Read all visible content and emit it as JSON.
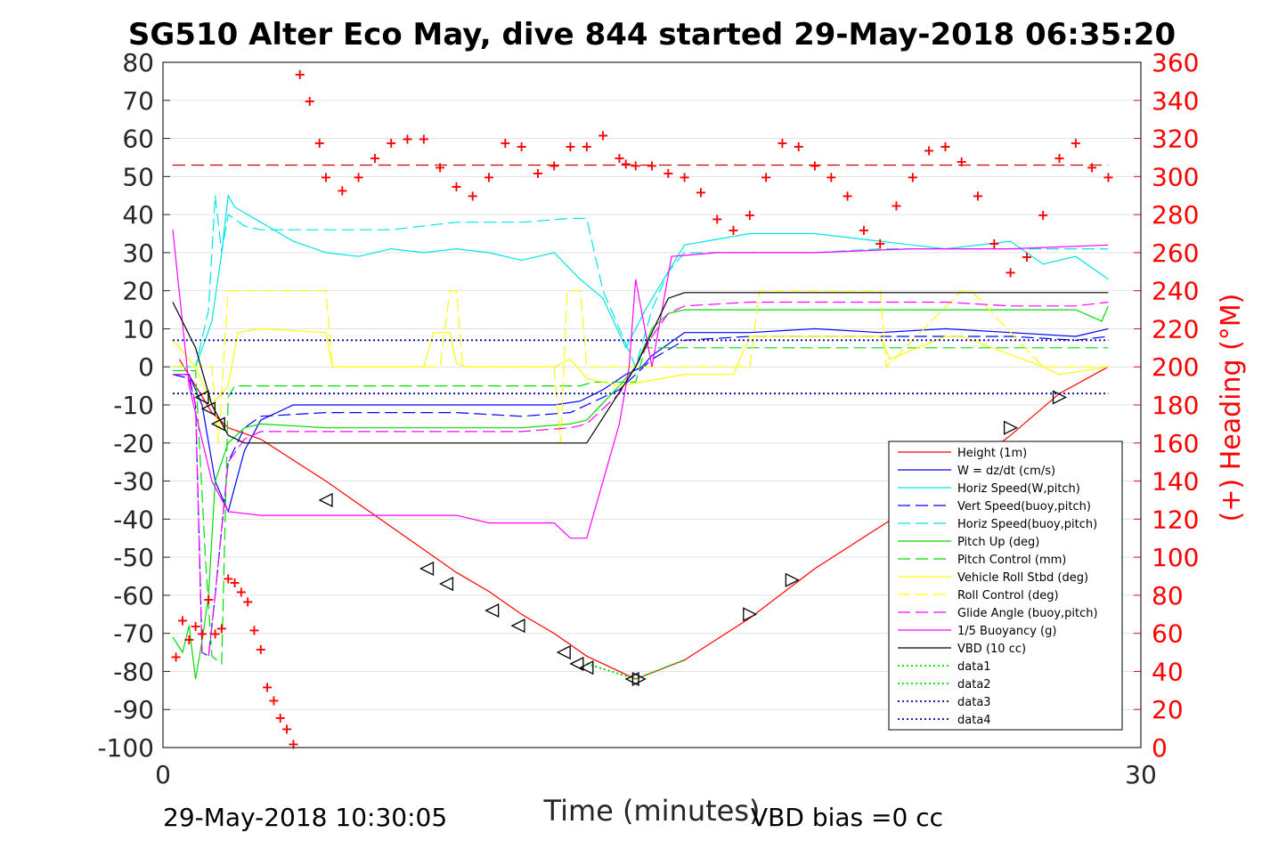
{
  "chart_data": {
    "type": "line",
    "title": "SG510 Alter Eco May, dive 844 started 29-May-2018 06:35:20",
    "xlabel": "Time (minutes)",
    "ylabel": "",
    "y2label": "(+) Heading (°M)",
    "xlim": [
      0,
      30
    ],
    "ylim": [
      -100,
      80
    ],
    "y2lim": [
      0,
      360
    ],
    "x_ticks": [
      "0",
      "30"
    ],
    "y_ticks": [
      "80",
      "70",
      "60",
      "50",
      "40",
      "30",
      "20",
      "10",
      "0",
      "-10",
      "-20",
      "-30",
      "-40",
      "-50",
      "-60",
      "-70",
      "-80",
      "-90",
      "-100"
    ],
    "y2_ticks": [
      "360",
      "340",
      "320",
      "300",
      "280",
      "260",
      "240",
      "220",
      "200",
      "180",
      "160",
      "140",
      "120",
      "100",
      "80",
      "60",
      "40",
      "20",
      "0"
    ],
    "grid": true,
    "legend_position": "bottom-right",
    "footer_left": "29-May-2018 10:30:05",
    "footer_right": "VBD bias =0 cc",
    "series": [
      {
        "name": "Height (1m)",
        "color": "#ff0000",
        "style": "solid",
        "x": [
          0.5,
          1.0,
          1.5,
          2.0,
          3.0,
          5.0,
          7.0,
          9.0,
          10.0,
          11.0,
          12.0,
          13.0,
          14.0,
          14.5,
          16.0,
          18.0,
          20.0,
          22.0,
          24.0,
          26.0,
          27.5,
          29.0
        ],
        "y": [
          2,
          -5,
          -12,
          -16,
          -19,
          -30,
          -42,
          -54,
          -59,
          -65,
          -70,
          -76,
          -80,
          -82,
          -77,
          -66,
          -53,
          -42,
          -31,
          -18,
          -7,
          0
        ]
      },
      {
        "name": "W = dz/dt (cm/s)",
        "color": "#0000ff",
        "style": "solid",
        "x": [
          0.3,
          0.8,
          1.2,
          1.6,
          2.0,
          2.5,
          3.0,
          4.0,
          6.0,
          8.0,
          10.0,
          12.0,
          12.8,
          13.5,
          14.2,
          14.7,
          15.0,
          15.5,
          16.0,
          18.0,
          20.0,
          22.0,
          24.0,
          26.0,
          28.0,
          29.0
        ],
        "y": [
          -2,
          -2,
          -10,
          -30,
          -38,
          -22,
          -14,
          -10,
          -10,
          -10,
          -10,
          -10,
          -9,
          -6,
          -2,
          0,
          3,
          6,
          9,
          9,
          10,
          9,
          10,
          9,
          8,
          10
        ]
      },
      {
        "name": "Horiz Speed(W,pitch)",
        "color": "#00e5e5",
        "style": "solid",
        "x": [
          0.3,
          1.0,
          1.5,
          1.8,
          2.0,
          2.2,
          3.0,
          4.0,
          5.0,
          6.0,
          7.0,
          8.0,
          9.0,
          10.0,
          11.0,
          12.0,
          12.8,
          13.5,
          14.2,
          14.8,
          15.5,
          16.0,
          18.0,
          20.0,
          22.0,
          24.0,
          26.0,
          27.0,
          28.0,
          29.0
        ],
        "y": [
          0,
          0,
          12,
          30,
          45,
          42,
          38,
          33,
          30,
          29,
          31,
          30,
          31,
          30,
          28,
          30,
          23,
          18,
          5,
          15,
          25,
          32,
          35,
          35,
          33,
          31,
          33,
          27,
          29,
          23
        ]
      },
      {
        "name": "Vert Speed(buoy,pitch)",
        "color": "#0000ff",
        "style": "dashed",
        "x": [
          0.3,
          0.8,
          1.0,
          1.2,
          1.4,
          1.6,
          2.0,
          2.5,
          3.0,
          5.0,
          7.0,
          9.0,
          11.0,
          12.5,
          13.0,
          14.0,
          14.5,
          15.0,
          16.0,
          18.0,
          20.0,
          22.0,
          24.0,
          26.0,
          28.0,
          29.0
        ],
        "y": [
          -2,
          -3,
          -10,
          -75,
          -76,
          -60,
          -25,
          -16,
          -13,
          -12,
          -12,
          -12,
          -13,
          -12,
          -10,
          -6,
          -2,
          2,
          7,
          8,
          8,
          8,
          8,
          8,
          7,
          8
        ]
      },
      {
        "name": "Horiz Speed(buoy,pitch)",
        "color": "#00e5e5",
        "style": "dashed",
        "x": [
          0.3,
          1.0,
          1.4,
          1.6,
          1.8,
          2.0,
          2.5,
          3.0,
          5.0,
          7.0,
          9.0,
          11.0,
          12.5,
          13.0,
          13.5,
          14.0,
          14.5,
          15.0,
          15.5,
          16.0,
          18.0,
          20.0,
          22.0,
          24.0,
          26.0,
          28.0,
          29.0
        ],
        "y": [
          0,
          0,
          15,
          45,
          30,
          40,
          37,
          36,
          36,
          36,
          38,
          38,
          39,
          39,
          20,
          10,
          0,
          15,
          25,
          30,
          30,
          30,
          31,
          31,
          31,
          31,
          31
        ]
      },
      {
        "name": "Pitch Up (deg)",
        "color": "#00dd00",
        "style": "solid",
        "x": [
          0.3,
          0.6,
          0.8,
          1.0,
          1.2,
          1.4,
          1.6,
          2.0,
          2.5,
          3.0,
          5.0,
          7.0,
          9.0,
          11.0,
          12.5,
          13.0,
          14.0,
          14.5,
          15.0,
          15.5,
          16.0,
          18.0,
          20.0,
          22.0,
          24.0,
          26.0,
          28.0,
          28.8,
          29.0
        ],
        "y": [
          -71,
          -75,
          -68,
          -82,
          -72,
          -60,
          -30,
          -20,
          -16,
          -15,
          -16,
          -16,
          -16,
          -16,
          -15,
          -14,
          -5,
          0,
          10,
          14,
          15,
          15,
          15,
          15,
          15,
          15,
          15,
          12,
          16
        ]
      },
      {
        "name": "Pitch Control (mm)",
        "color": "#00dd00",
        "style": "dashed",
        "x": [
          0.3,
          1.0,
          1.3,
          1.5,
          1.8,
          2.0,
          2.2,
          12.8,
          13.2,
          14.5,
          14.8,
          16.0,
          29.0
        ],
        "y": [
          -1,
          -1,
          -50,
          -76,
          -78,
          -8,
          -5,
          -5,
          -4,
          -4,
          5,
          5,
          5
        ]
      },
      {
        "name": "Vehicle Roll Stbd (deg)",
        "color": "#ffff00",
        "style": "solid",
        "x": [
          0.3,
          1.0,
          1.5,
          2.0,
          2.3,
          3.0,
          5.0,
          5.2,
          8.0,
          8.3,
          8.8,
          9.0,
          9.3,
          12.0,
          12.5,
          13.0,
          14.0,
          16.0,
          17.5,
          18.0,
          20.0,
          22.0,
          22.3,
          24.0,
          24.5,
          27.0,
          27.5,
          29.0
        ],
        "y": [
          7,
          0,
          -10,
          -5,
          9,
          10,
          9,
          0,
          0,
          9,
          9,
          1,
          0,
          0,
          2,
          -3,
          -5,
          -2,
          -2,
          8,
          8,
          8,
          2,
          8,
          8,
          0,
          -2,
          0
        ]
      },
      {
        "name": "Roll Control (deg)",
        "color": "#ffff00",
        "style": "dashed",
        "x": [
          0.3,
          1.0,
          1.5,
          1.7,
          2.0,
          4.5,
          5.0,
          5.2,
          8.5,
          8.8,
          9.0,
          9.2,
          12.0,
          12.2,
          12.4,
          12.8,
          13.0,
          14.0,
          16.0,
          18.0,
          18.3,
          20.0,
          22.0,
          22.2,
          24.5,
          24.8,
          27.0,
          27.5,
          29.0
        ],
        "y": [
          0,
          0,
          0,
          -20,
          20,
          20,
          20,
          0,
          0,
          20,
          20,
          0,
          0,
          -20,
          20,
          20,
          0,
          0,
          0,
          0,
          20,
          20,
          20,
          0,
          20,
          20,
          0,
          0,
          0
        ]
      },
      {
        "name": "Glide Angle (buoy,pitch)",
        "color": "#ff00ff",
        "style": "dashed",
        "x": [
          0.3,
          0.8,
          1.0,
          1.2,
          1.4,
          1.6,
          2.0,
          2.5,
          3.0,
          5.0,
          7.0,
          9.0,
          11.0,
          12.5,
          13.0,
          14.0,
          14.5,
          15.0,
          15.5,
          16.0,
          18.0,
          20.0,
          22.0,
          24.0,
          26.0,
          28.0,
          29.0
        ],
        "y": [
          -2,
          -2,
          -10,
          -75,
          -76,
          -60,
          -25,
          -19,
          -17,
          -17,
          -17,
          -17,
          -17,
          -16,
          -15,
          -7,
          0,
          8,
          14,
          16,
          17,
          17,
          17,
          17,
          16,
          16,
          17
        ]
      },
      {
        "name": "1/5 Buoyancy (g)",
        "color": "#ff00ff",
        "style": "solid",
        "x": [
          0.3,
          0.8,
          1.5,
          2.0,
          3.0,
          6.0,
          9.0,
          10.0,
          11.0,
          12.0,
          12.5,
          13.0,
          13.5,
          14.0,
          14.3,
          14.5,
          15.0,
          15.6,
          17.0,
          20.0,
          23.0,
          26.0,
          29.0
        ],
        "y": [
          36,
          -5,
          -30,
          -38,
          -39,
          -39,
          -39,
          -41,
          -41,
          -41,
          -45,
          -45,
          -30,
          -15,
          0,
          23,
          0,
          29,
          30,
          30,
          31,
          31,
          32
        ]
      },
      {
        "name": "VBD (10 cc)",
        "color": "#000000",
        "style": "solid",
        "x": [
          0.3,
          1.0,
          1.5,
          2.0,
          2.5,
          3.0,
          13.0,
          14.5,
          15.5,
          16.0,
          29.0
        ],
        "y": [
          17,
          5,
          -10,
          -18,
          -20,
          -20,
          -20,
          0,
          18,
          19.5,
          19.5
        ]
      },
      {
        "name": "data1",
        "color": "#00dd00",
        "style": "dotted",
        "x": [
          13.0,
          14.5,
          16.0
        ],
        "y": [
          -78,
          -82,
          -77
        ]
      },
      {
        "name": "data2",
        "color": "#00dd00",
        "style": "dotted",
        "x": [
          13.0,
          14.5,
          16.0
        ],
        "y": [
          -78,
          -82,
          -77
        ]
      },
      {
        "name": "data3",
        "color": "#0000aa",
        "style": "dotted",
        "x": [
          0.3,
          29.0
        ],
        "y": [
          7,
          7
        ]
      },
      {
        "name": "data4",
        "color": "#0000aa",
        "style": "dotted",
        "x": [
          0.3,
          29.0
        ],
        "y": [
          -7,
          -7
        ]
      }
    ],
    "heading_mean": {
      "color": "#cc0000",
      "y2": 306
    },
    "heading_points": {
      "color": "#ff0000",
      "x": [
        0.4,
        0.6,
        0.8,
        1.0,
        1.2,
        1.4,
        1.6,
        1.8,
        2.0,
        2.2,
        2.4,
        2.6,
        2.8,
        3.0,
        3.2,
        3.4,
        3.6,
        3.8,
        4.0,
        4.2,
        4.5,
        4.8,
        5.0,
        5.5,
        6.0,
        6.5,
        7.0,
        7.5,
        8.0,
        8.5,
        9.0,
        9.5,
        10.0,
        10.5,
        11.0,
        11.5,
        12.0,
        12.5,
        13.0,
        13.5,
        14.0,
        14.2,
        14.5,
        15.0,
        15.5,
        16.0,
        16.5,
        17.0,
        17.5,
        18.0,
        18.5,
        19.0,
        19.5,
        20.0,
        20.5,
        21.0,
        21.5,
        22.0,
        22.5,
        23.0,
        23.5,
        24.0,
        24.5,
        25.0,
        25.5,
        26.0,
        26.5,
        27.0,
        27.5,
        28.0,
        28.5,
        29.0
      ],
      "y2": [
        48,
        67,
        57,
        64,
        60,
        78,
        60,
        63,
        89,
        87,
        82,
        77,
        62,
        52,
        32,
        25,
        16,
        10,
        2,
        354,
        340,
        318,
        300,
        293,
        300,
        310,
        318,
        320,
        320,
        305,
        295,
        290,
        300,
        318,
        316,
        302,
        306,
        316,
        316,
        322,
        310,
        307,
        306,
        306,
        302,
        300,
        292,
        278,
        272,
        280,
        300,
        318,
        316,
        306,
        300,
        290,
        272,
        265,
        285,
        300,
        314,
        316,
        308,
        290,
        265,
        250,
        258,
        280,
        310,
        318,
        305,
        300
      ]
    },
    "markers": {
      "color": "#000000",
      "down": {
        "x": [
          1.2,
          1.4,
          1.7,
          5.0,
          8.1,
          8.7,
          10.1,
          10.9,
          12.3,
          12.7,
          13.0,
          14.4
        ],
        "y": [
          -8,
          -11,
          -15,
          -35,
          -53,
          -57,
          -64,
          -68,
          -75,
          -78,
          -79,
          -82
        ]
      },
      "up": {
        "x": [
          14.6,
          18.0,
          19.3,
          22.6,
          26.0,
          27.5
        ],
        "y": [
          -82,
          -65,
          -56,
          -37,
          -16,
          -8
        ]
      }
    }
  }
}
